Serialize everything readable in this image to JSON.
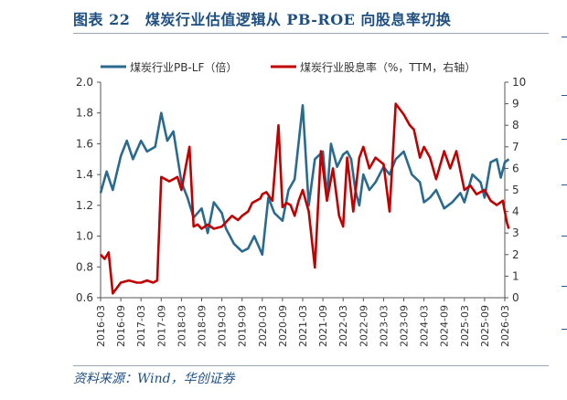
{
  "title": "图表 22　煤炭行业估值逻辑从 PB-ROE 向股息率切换",
  "source": "资料来源：Wind，华创证券",
  "colors": {
    "pb": "#2b6a8f",
    "dy": "#c00000",
    "title": "#1f4f80"
  },
  "chart_data": {
    "type": "line",
    "legend_position": "top",
    "grid": false,
    "x_ticks": [
      "2016-03",
      "2016-09",
      "2017-03",
      "2017-09",
      "2018-03",
      "2018-09",
      "2019-03",
      "2019-09",
      "2020-03",
      "2020-09",
      "2021-03",
      "2021-09",
      "2022-03",
      "2022-09",
      "2023-03",
      "2023-09",
      "2024-03",
      "2024-09",
      "2025-03",
      "2025-09",
      "2026-03"
    ],
    "y_left": {
      "min": 0.6,
      "max": 2.0,
      "ticks": [
        "0.6",
        "0.8",
        "1.0",
        "1.2",
        "1.4",
        "1.6",
        "1.8",
        "2.0"
      ]
    },
    "y_right": {
      "min": 0,
      "max": 10,
      "ticks": [
        "0",
        "1",
        "2",
        "3",
        "4",
        "5",
        "6",
        "7",
        "8",
        "9",
        "10"
      ]
    },
    "series": [
      {
        "name": "煤炭行业PB-LF（倍）",
        "axis": "left",
        "color": "#2b6a8f",
        "x": [
          0,
          0.3,
          0.6,
          1.0,
          1.3,
          1.6,
          2.0,
          2.3,
          2.7,
          3.0,
          3.3,
          3.6,
          4.0,
          4.3,
          4.6,
          5.0,
          5.3,
          5.6,
          6.0,
          6.2,
          6.6,
          7.0,
          7.3,
          7.6,
          8.0,
          8.3,
          8.6,
          9.0,
          9.3,
          9.6,
          10.0,
          10.3,
          10.6,
          11.0,
          11.2,
          11.4,
          11.7,
          12.0,
          12.2,
          12.4,
          12.6,
          12.8,
          13.0,
          13.3,
          13.6,
          14.0,
          14.3,
          14.6,
          15.0,
          15.4,
          15.8,
          16.0,
          16.3,
          16.6,
          17.0,
          17.4,
          17.8,
          18.0,
          18.4,
          18.8,
          19.0,
          19.3,
          19.6,
          19.8,
          20.0,
          20.2
        ],
        "y": [
          1.28,
          1.42,
          1.3,
          1.52,
          1.62,
          1.5,
          1.62,
          1.55,
          1.58,
          1.8,
          1.62,
          1.68,
          1.35,
          1.25,
          1.12,
          1.18,
          1.02,
          1.22,
          1.15,
          1.05,
          0.95,
          0.9,
          0.92,
          1.0,
          0.88,
          1.25,
          1.15,
          1.1,
          1.3,
          1.37,
          1.85,
          1.2,
          1.5,
          1.55,
          1.25,
          1.6,
          1.45,
          1.53,
          1.55,
          1.5,
          1.3,
          1.2,
          1.4,
          1.3,
          1.35,
          1.45,
          1.4,
          1.5,
          1.55,
          1.4,
          1.35,
          1.22,
          1.25,
          1.3,
          1.18,
          1.22,
          1.28,
          1.22,
          1.4,
          1.35,
          1.25,
          1.48,
          1.5,
          1.38,
          1.48,
          1.5
        ]
      },
      {
        "name": "煤炭行业股息率（%，TTM，右轴）",
        "axis": "right",
        "color": "#c00000",
        "x": [
          0,
          0.2,
          0.4,
          0.6,
          1.0,
          1.4,
          1.8,
          2.0,
          2.3,
          2.6,
          2.8,
          3.0,
          3.2,
          3.4,
          3.8,
          4.0,
          4.2,
          4.4,
          4.6,
          4.8,
          5.0,
          5.3,
          5.6,
          6.0,
          6.2,
          6.5,
          6.8,
          7.0,
          7.3,
          7.5,
          7.7,
          7.9,
          8.0,
          8.2,
          8.5,
          8.8,
          9.0,
          9.2,
          9.4,
          9.6,
          9.8,
          10.0,
          10.3,
          10.6,
          10.9,
          11.2,
          11.5,
          11.8,
          12.0,
          12.2,
          12.5,
          12.8,
          13.0,
          13.3,
          13.6,
          14.0,
          14.3,
          14.6,
          15.0,
          15.3,
          15.5,
          15.8,
          16.0,
          16.3,
          16.6,
          17.0,
          17.3,
          17.6,
          18.0,
          18.3,
          18.6,
          19.0,
          19.3,
          19.6,
          19.9,
          20.1,
          20.2
        ],
        "y": [
          2.0,
          1.8,
          2.1,
          0.2,
          0.7,
          0.8,
          0.7,
          0.7,
          0.8,
          0.7,
          0.8,
          5.6,
          5.5,
          5.4,
          5.6,
          5.0,
          6.0,
          7.0,
          3.3,
          3.4,
          3.2,
          3.4,
          3.2,
          3.3,
          3.5,
          3.8,
          3.6,
          3.8,
          4.0,
          4.4,
          4.5,
          4.6,
          4.8,
          4.9,
          4.5,
          8.0,
          4.2,
          4.4,
          4.3,
          3.8,
          4.5,
          5.0,
          4.0,
          1.4,
          6.8,
          4.5,
          6.0,
          3.8,
          3.3,
          6.5,
          4.0,
          6.5,
          7.0,
          6.0,
          6.5,
          6.2,
          4.0,
          9.0,
          8.5,
          8.0,
          7.8,
          6.5,
          7.0,
          6.5,
          5.5,
          6.8,
          6.0,
          6.8,
          5.0,
          5.2,
          4.8,
          5.0,
          4.5,
          4.3,
          4.5,
          3.5,
          3.2
        ]
      }
    ]
  }
}
